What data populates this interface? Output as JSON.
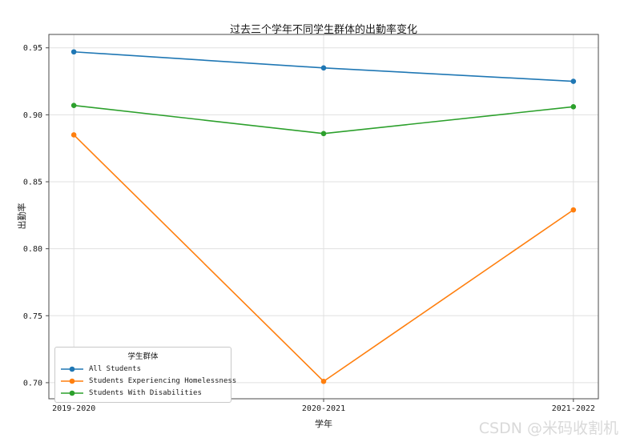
{
  "watermark": "CSDN @米码收割机",
  "chart_data": {
    "type": "line",
    "title": "过去三个学年不同学生群体的出勤率变化",
    "xlabel": "学年",
    "ylabel": "出勤率",
    "categories": [
      "2019-2020",
      "2020-2021",
      "2021-2022"
    ],
    "series": [
      {
        "name": "All Students",
        "color": "#1f77b4",
        "values": [
          0.947,
          0.935,
          0.925
        ]
      },
      {
        "name": "Students Experiencing Homelessness",
        "color": "#ff7f0e",
        "values": [
          0.885,
          0.701,
          0.829
        ]
      },
      {
        "name": "Students With Disabilities",
        "color": "#2ca02c",
        "values": [
          0.907,
          0.886,
          0.906
        ]
      }
    ],
    "legend": {
      "title": "学生群体",
      "position": "lower left"
    },
    "xlim": [
      -0.1,
      2.1
    ],
    "ylim": [
      0.688,
      0.96
    ],
    "yticks": [
      0.7,
      0.75,
      0.8,
      0.85,
      0.9,
      0.95
    ],
    "grid": true,
    "marker": "o",
    "grid_color": "#e0e0e0",
    "spine_color": "#4a4a4a",
    "tick_color": "#4a4a4a"
  }
}
